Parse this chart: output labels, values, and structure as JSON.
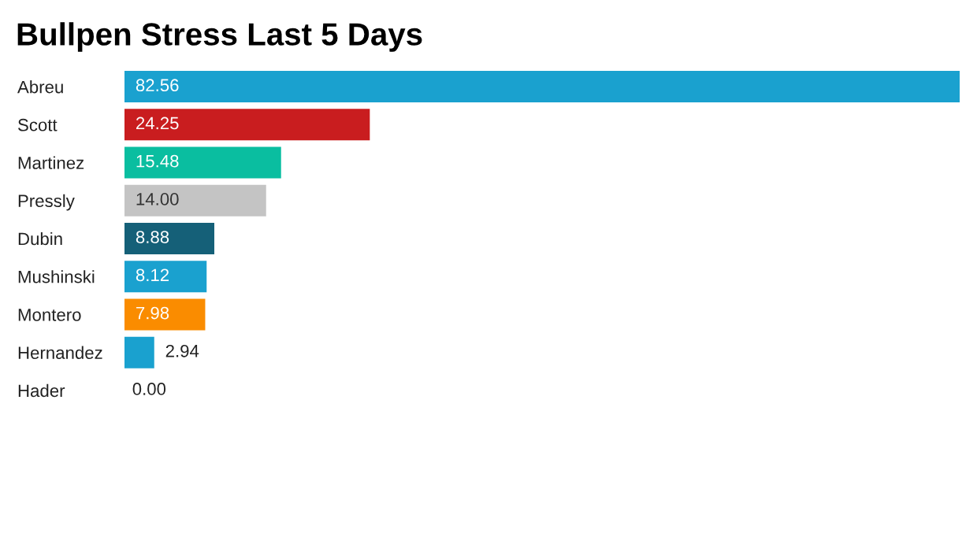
{
  "chart_data": {
    "type": "bar",
    "orientation": "horizontal",
    "title": "Bullpen Stress Last 5 Days",
    "categories": [
      "Abreu",
      "Scott",
      "Martinez",
      "Pressly",
      "Dubin",
      "Mushinski",
      "Montero",
      "Hernandez",
      "Hader"
    ],
    "values": [
      82.56,
      24.25,
      15.48,
      14.0,
      8.88,
      8.12,
      7.98,
      2.94,
      0.0
    ],
    "value_labels": [
      "82.56",
      "24.25",
      "15.48",
      "14.00",
      "8.88",
      "8.12",
      "7.98",
      "2.94",
      "0.00"
    ],
    "colors": [
      "#1aa1cf",
      "#c91d1f",
      "#0abea0",
      "#c4c4c4",
      "#156078",
      "#1aa1cf",
      "#fa8c00",
      "#1aa1cf",
      "#1aa1cf"
    ],
    "grid": false,
    "legend": false,
    "tick_labels": "y"
  }
}
